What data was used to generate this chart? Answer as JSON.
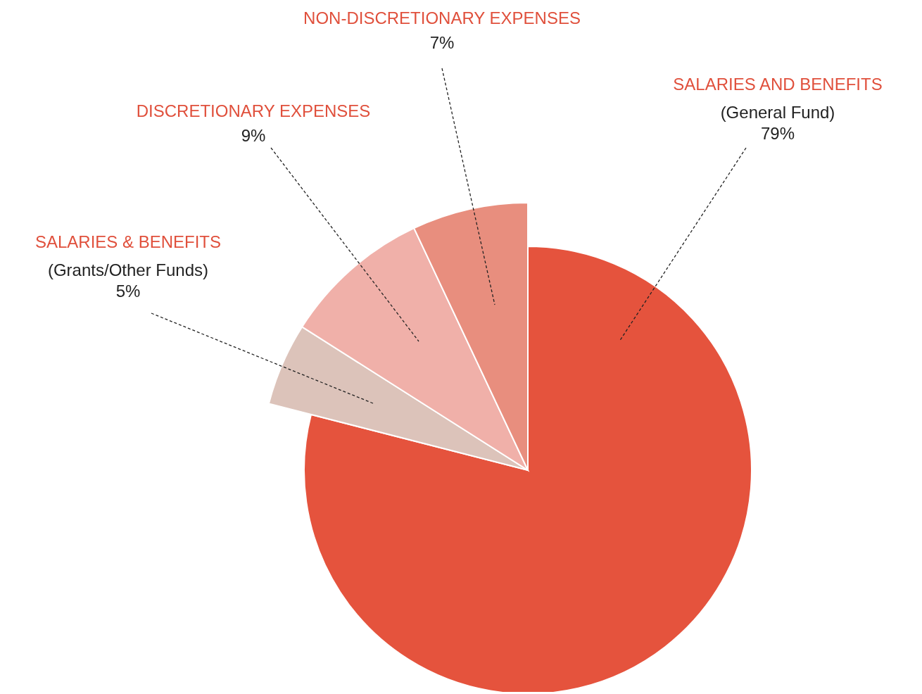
{
  "chart_data": {
    "type": "pie",
    "categories": [
      "SALARIES AND BENEFITS (General Fund)",
      "SALARIES & BENEFITS (Grants/Other Funds)",
      "DISCRETIONARY EXPENSES",
      "NON-DISCRETIONARY EXPENSES"
    ],
    "values": [
      79,
      5,
      9,
      7
    ],
    "colors": [
      "#e5533d",
      "#dcc3ba",
      "#f0b0a9",
      "#e88e7e"
    ],
    "value_labels": [
      "79%",
      "5%",
      "9%",
      "7%"
    ]
  }
}
